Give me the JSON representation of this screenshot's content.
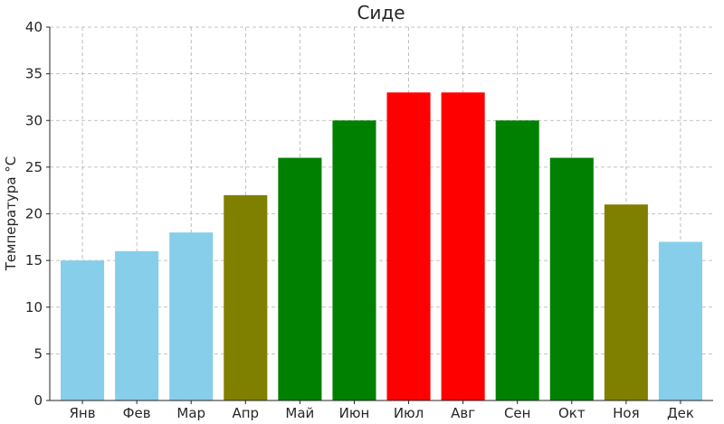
{
  "chart_data": {
    "type": "bar",
    "title": "Сиде",
    "xlabel": "",
    "ylabel": "Температура °C",
    "categories": [
      "Янв",
      "Фев",
      "Мар",
      "Апр",
      "Май",
      "Июн",
      "Июл",
      "Авг",
      "Сен",
      "Окт",
      "Ноя",
      "Дек"
    ],
    "values": [
      15,
      16,
      18,
      22,
      26,
      30,
      33,
      33,
      30,
      26,
      21,
      17
    ],
    "bar_colors": [
      "#87ceeb",
      "#87ceeb",
      "#87ceeb",
      "#808000",
      "#008000",
      "#008000",
      "#ff0000",
      "#ff0000",
      "#008000",
      "#008000",
      "#808000",
      "#87ceeb"
    ],
    "ylim": [
      0,
      40
    ],
    "yticks": [
      0,
      5,
      10,
      15,
      20,
      25,
      30,
      35,
      40
    ],
    "grid": true,
    "legend": "none"
  }
}
